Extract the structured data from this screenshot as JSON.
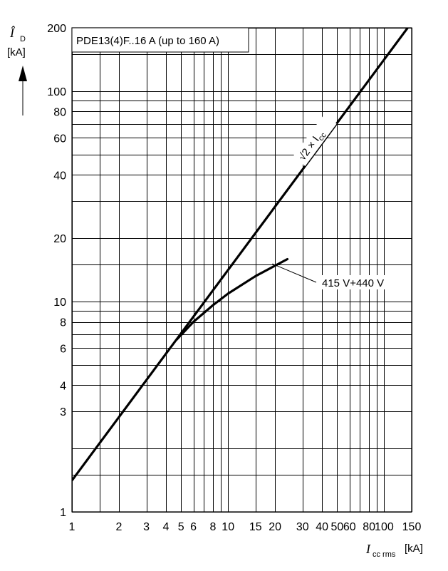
{
  "chart_data": {
    "type": "line",
    "title": "PDE13(4)F..16 A (up to 160 A)",
    "x_scale": "log",
    "y_scale": "log",
    "xlim": [
      1,
      150
    ],
    "ylim": [
      1,
      200
    ],
    "xlabel": {
      "main": "I",
      "sub": "cc rms",
      "unit": "[kA]"
    },
    "ylabel": {
      "main": "Î",
      "sub": "D",
      "unit": "[kA]"
    },
    "x_tick_labels": [
      {
        "value": 1,
        "label": "1"
      },
      {
        "value": 2,
        "label": "2"
      },
      {
        "value": 3,
        "label": "3"
      },
      {
        "value": 4,
        "label": "4"
      },
      {
        "value": 5,
        "label": "5"
      },
      {
        "value": 6,
        "label": "6"
      },
      {
        "value": 8,
        "label": "8"
      },
      {
        "value": 10,
        "label": "10"
      },
      {
        "value": 15,
        "label": "15"
      },
      {
        "value": 20,
        "label": "20"
      },
      {
        "value": 30,
        "label": "30"
      },
      {
        "value": 40,
        "label": "40"
      },
      {
        "value": 50,
        "label": "50"
      },
      {
        "value": 60,
        "label": "60"
      },
      {
        "value": 80,
        "label": "80"
      },
      {
        "value": 100,
        "label": "100"
      },
      {
        "value": 150,
        "label": "150"
      }
    ],
    "y_tick_labels": [
      {
        "value": 1,
        "label": "1"
      },
      {
        "value": 3,
        "label": "3"
      },
      {
        "value": 4,
        "label": "4"
      },
      {
        "value": 6,
        "label": "6"
      },
      {
        "value": 8,
        "label": "8"
      },
      {
        "value": 10,
        "label": "10"
      },
      {
        "value": 20,
        "label": "20"
      },
      {
        "value": 40,
        "label": "40"
      },
      {
        "value": 60,
        "label": "60"
      },
      {
        "value": 80,
        "label": "80"
      },
      {
        "value": 100,
        "label": "100"
      },
      {
        "value": 200,
        "label": "200"
      }
    ],
    "x_grid": [
      1,
      1.5,
      2,
      3,
      4,
      5,
      6,
      7,
      8,
      9,
      10,
      15,
      20,
      30,
      40,
      50,
      60,
      70,
      80,
      90,
      100,
      150
    ],
    "y_grid": [
      1,
      1.5,
      2,
      3,
      4,
      5,
      6,
      7,
      8,
      9,
      10,
      15,
      20,
      30,
      40,
      50,
      60,
      70,
      80,
      90,
      100,
      150,
      200
    ],
    "grid": true,
    "series": [
      {
        "name": "√2 × I",
        "name_sub": "cc",
        "x": [
          1,
          150
        ],
        "y": [
          1.41,
          212
        ]
      },
      {
        "name": "415 V+440 V",
        "x": [
          4.7,
          6,
          8,
          10,
          15,
          24
        ],
        "y": [
          6.6,
          8.0,
          9.6,
          10.9,
          13.2,
          15.9
        ]
      }
    ]
  }
}
